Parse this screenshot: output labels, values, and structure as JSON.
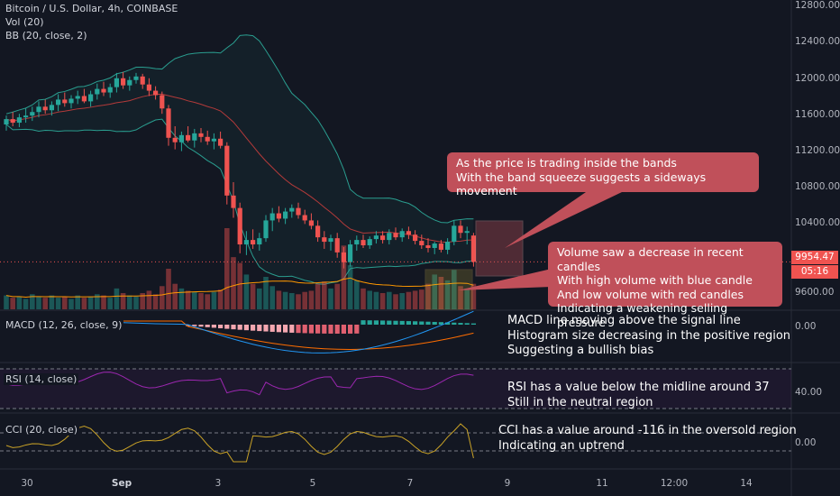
{
  "legend": {
    "symbol": "Bitcoin / U.S. Dollar, 4h, COINBASE",
    "volume": "Vol (20)",
    "bollinger": "BB (20, close, 2)",
    "macd": "MACD (12, 26, close, 9)",
    "rsi": "RSI (14, close)",
    "cci": "CCI (20, close)"
  },
  "price_axis": [
    "12800.00",
    "12400.00",
    "12000.00",
    "11600.00",
    "11200.00",
    "10800.00",
    "10400.00",
    "9600.00"
  ],
  "last_price": {
    "value": "9954.47",
    "countdown": "05:16"
  },
  "macd_axis": [
    "0.00"
  ],
  "rsi_axis": [
    "40.00"
  ],
  "cci_axis": [
    "0.00"
  ],
  "time_axis": [
    {
      "label": "30",
      "bold": false
    },
    {
      "label": "Sep",
      "bold": true
    },
    {
      "label": "3",
      "bold": false
    },
    {
      "label": "5",
      "bold": false
    },
    {
      "label": "7",
      "bold": false
    },
    {
      "label": "9",
      "bold": false
    },
    {
      "label": "11",
      "bold": false
    },
    {
      "label": "12:00",
      "bold": false
    },
    {
      "label": "14",
      "bold": false
    }
  ],
  "callouts": {
    "bands": [
      "As the price is trading inside the bands",
      "With the band squeeze suggests a sideways movement"
    ],
    "volume": [
      "Volume saw a decrease in recent candles",
      "With high volume with blue candle",
      "And low volume with red candles",
      "Indicating a weakening selling pressure"
    ]
  },
  "notes": {
    "macd": [
      "MACD line moving above the signal line",
      "Histogram size decreasing in the positive region",
      "Suggesting a bullish bias"
    ],
    "rsi": [
      "RSI has a value below the midline around 37",
      "Still in the neutral region"
    ],
    "cci": [
      "CCI has a value around -116 in the oversold region",
      "Indicating an uptrend"
    ]
  },
  "colors": {
    "background": "#131722",
    "up": "#26a69a",
    "down": "#ef5350",
    "bb_band": "#2a9d8f",
    "bb_basis": "#b33a3a",
    "volume_ma": "#ff9800",
    "macd_line": "#2196f3",
    "signal_line": "#ff6d00",
    "rsi_line": "#9c27b0",
    "cci_line": "#c9a227",
    "callout": "#c0505a"
  },
  "chart_data": {
    "type": "candlestick",
    "symbol": "Bitcoin / U.S. Dollar",
    "interval": "4h",
    "ylim": [
      9450,
      12850
    ],
    "candles": [
      {
        "o": 11500,
        "h": 11600,
        "l": 11430,
        "c": 11560
      },
      {
        "o": 11560,
        "h": 11640,
        "l": 11480,
        "c": 11520
      },
      {
        "o": 11520,
        "h": 11620,
        "l": 11470,
        "c": 11580
      },
      {
        "o": 11580,
        "h": 11680,
        "l": 11520,
        "c": 11600
      },
      {
        "o": 11600,
        "h": 11700,
        "l": 11540,
        "c": 11640
      },
      {
        "o": 11640,
        "h": 11760,
        "l": 11580,
        "c": 11700
      },
      {
        "o": 11700,
        "h": 11780,
        "l": 11620,
        "c": 11660
      },
      {
        "o": 11660,
        "h": 11760,
        "l": 11600,
        "c": 11720
      },
      {
        "o": 11720,
        "h": 11840,
        "l": 11650,
        "c": 11780
      },
      {
        "o": 11780,
        "h": 11860,
        "l": 11700,
        "c": 11740
      },
      {
        "o": 11740,
        "h": 11830,
        "l": 11680,
        "c": 11790
      },
      {
        "o": 11790,
        "h": 11880,
        "l": 11730,
        "c": 11820
      },
      {
        "o": 11820,
        "h": 11900,
        "l": 11740,
        "c": 11760
      },
      {
        "o": 11760,
        "h": 11880,
        "l": 11700,
        "c": 11840
      },
      {
        "o": 11840,
        "h": 11960,
        "l": 11780,
        "c": 11900
      },
      {
        "o": 11900,
        "h": 11980,
        "l": 11820,
        "c": 11860
      },
      {
        "o": 11860,
        "h": 11960,
        "l": 11800,
        "c": 11920
      },
      {
        "o": 11920,
        "h": 12080,
        "l": 11860,
        "c": 12020
      },
      {
        "o": 12020,
        "h": 12090,
        "l": 11900,
        "c": 11940
      },
      {
        "o": 11940,
        "h": 12040,
        "l": 11880,
        "c": 12000
      },
      {
        "o": 12000,
        "h": 12080,
        "l": 11960,
        "c": 12040
      },
      {
        "o": 12040,
        "h": 12070,
        "l": 11900,
        "c": 11950
      },
      {
        "o": 11950,
        "h": 12020,
        "l": 11820,
        "c": 11880
      },
      {
        "o": 11880,
        "h": 11930,
        "l": 11780,
        "c": 11830
      },
      {
        "o": 11830,
        "h": 11870,
        "l": 11620,
        "c": 11680
      },
      {
        "o": 11680,
        "h": 11720,
        "l": 11260,
        "c": 11350
      },
      {
        "o": 11350,
        "h": 11480,
        "l": 11220,
        "c": 11300
      },
      {
        "o": 11300,
        "h": 11420,
        "l": 11200,
        "c": 11380
      },
      {
        "o": 11380,
        "h": 11480,
        "l": 11300,
        "c": 11320
      },
      {
        "o": 11320,
        "h": 11450,
        "l": 11240,
        "c": 11400
      },
      {
        "o": 11400,
        "h": 11460,
        "l": 11300,
        "c": 11360
      },
      {
        "o": 11360,
        "h": 11430,
        "l": 11270,
        "c": 11310
      },
      {
        "o": 11310,
        "h": 11400,
        "l": 11220,
        "c": 11340
      },
      {
        "o": 11340,
        "h": 11420,
        "l": 11230,
        "c": 11260
      },
      {
        "o": 11260,
        "h": 11300,
        "l": 10600,
        "c": 10700
      },
      {
        "o": 10700,
        "h": 10850,
        "l": 10450,
        "c": 10560
      },
      {
        "o": 10560,
        "h": 10620,
        "l": 10050,
        "c": 10150
      },
      {
        "o": 10150,
        "h": 10300,
        "l": 10030,
        "c": 10200
      },
      {
        "o": 10200,
        "h": 10320,
        "l": 10100,
        "c": 10150
      },
      {
        "o": 10150,
        "h": 10280,
        "l": 10080,
        "c": 10220
      },
      {
        "o": 10220,
        "h": 10480,
        "l": 10180,
        "c": 10420
      },
      {
        "o": 10420,
        "h": 10560,
        "l": 10300,
        "c": 10500
      },
      {
        "o": 10500,
        "h": 10580,
        "l": 10400,
        "c": 10440
      },
      {
        "o": 10440,
        "h": 10560,
        "l": 10380,
        "c": 10520
      },
      {
        "o": 10520,
        "h": 10600,
        "l": 10450,
        "c": 10560
      },
      {
        "o": 10560,
        "h": 10620,
        "l": 10440,
        "c": 10480
      },
      {
        "o": 10480,
        "h": 10540,
        "l": 10380,
        "c": 10420
      },
      {
        "o": 10420,
        "h": 10500,
        "l": 10320,
        "c": 10360
      },
      {
        "o": 10360,
        "h": 10420,
        "l": 10180,
        "c": 10230
      },
      {
        "o": 10230,
        "h": 10300,
        "l": 10100,
        "c": 10180
      },
      {
        "o": 10180,
        "h": 10260,
        "l": 10080,
        "c": 10220
      },
      {
        "o": 10220,
        "h": 10280,
        "l": 10000,
        "c": 10060
      },
      {
        "o": 10060,
        "h": 10120,
        "l": 9880,
        "c": 9950
      },
      {
        "o": 9950,
        "h": 10200,
        "l": 9900,
        "c": 10150
      },
      {
        "o": 10150,
        "h": 10250,
        "l": 10080,
        "c": 10200
      },
      {
        "o": 10200,
        "h": 10260,
        "l": 10110,
        "c": 10140
      },
      {
        "o": 10140,
        "h": 10240,
        "l": 10100,
        "c": 10210
      },
      {
        "o": 10210,
        "h": 10300,
        "l": 10160,
        "c": 10250
      },
      {
        "o": 10250,
        "h": 10300,
        "l": 10160,
        "c": 10200
      },
      {
        "o": 10200,
        "h": 10320,
        "l": 10150,
        "c": 10280
      },
      {
        "o": 10280,
        "h": 10340,
        "l": 10200,
        "c": 10230
      },
      {
        "o": 10230,
        "h": 10330,
        "l": 10180,
        "c": 10300
      },
      {
        "o": 10300,
        "h": 10350,
        "l": 10210,
        "c": 10260
      },
      {
        "o": 10260,
        "h": 10310,
        "l": 10150,
        "c": 10190
      },
      {
        "o": 10190,
        "h": 10260,
        "l": 10100,
        "c": 10140
      },
      {
        "o": 10140,
        "h": 10220,
        "l": 10060,
        "c": 10110
      },
      {
        "o": 10110,
        "h": 10180,
        "l": 10040,
        "c": 10160
      },
      {
        "o": 10160,
        "h": 10200,
        "l": 10060,
        "c": 10090
      },
      {
        "o": 10090,
        "h": 10220,
        "l": 10040,
        "c": 10180
      },
      {
        "o": 10180,
        "h": 10420,
        "l": 10140,
        "c": 10360
      },
      {
        "o": 10360,
        "h": 10420,
        "l": 10220,
        "c": 10280
      },
      {
        "o": 10280,
        "h": 10350,
        "l": 10150,
        "c": 10300
      },
      {
        "o": 10250,
        "h": 10280,
        "l": 9900,
        "c": 9954
      }
    ],
    "volume": [
      12,
      10,
      11,
      9,
      13,
      11,
      10,
      12,
      10,
      11,
      9,
      12,
      10,
      11,
      13,
      12,
      10,
      18,
      14,
      12,
      11,
      14,
      16,
      13,
      20,
      35,
      22,
      18,
      16,
      15,
      14,
      13,
      15,
      17,
      70,
      45,
      40,
      30,
      22,
      18,
      28,
      20,
      16,
      15,
      14,
      13,
      15,
      16,
      22,
      24,
      18,
      22,
      55,
      38,
      25,
      18,
      16,
      15,
      14,
      15,
      13,
      14,
      15,
      16,
      17,
      22,
      30,
      28,
      25,
      34,
      20,
      18,
      22
    ]
  }
}
